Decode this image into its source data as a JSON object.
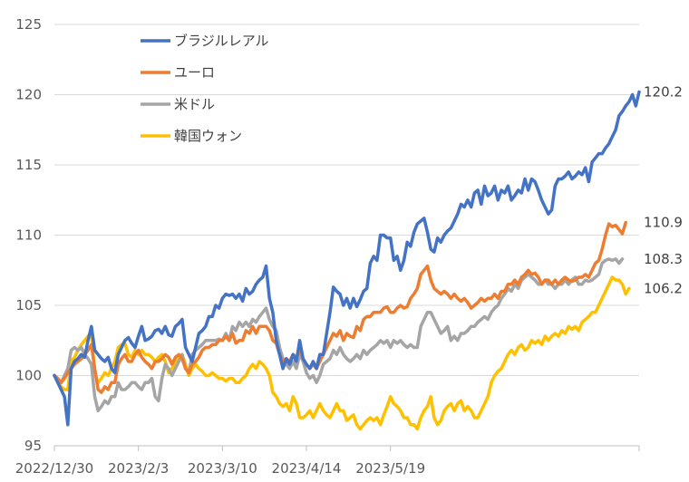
{
  "chart_data": {
    "type": "line",
    "title": "",
    "xlabel": "",
    "ylabel": "",
    "ylim": [
      95,
      125
    ],
    "yticks": [
      95,
      100,
      105,
      110,
      115,
      120,
      125
    ],
    "grid": "horizontal",
    "legend_position": "top-left",
    "xtick_labels": [
      "2022/12/30",
      "2023/2/3",
      "2023/3/10",
      "2023/4/14",
      "2023/5/19"
    ],
    "series": [
      {
        "name": "ブラジルレアル",
        "color": "#4472C4",
        "end_label": "120.2",
        "values": [
          100.0,
          99.5,
          99.0,
          98.5,
          96.5,
          100.5,
          101.0,
          101.2,
          101.5,
          101.3,
          102.5,
          103.5,
          101.8,
          101.5,
          101.2,
          101.0,
          101.3,
          100.5,
          100.2,
          101.5,
          102.0,
          102.5,
          102.7,
          102.3,
          102.0,
          102.8,
          103.5,
          102.5,
          102.6,
          102.8,
          103.2,
          103.3,
          103.0,
          103.5,
          102.9,
          102.8,
          103.5,
          103.7,
          104.0,
          102.0,
          101.5,
          101.0,
          102.0,
          103.0,
          103.2,
          103.5,
          104.2,
          104.2,
          105.0,
          104.8,
          105.5,
          105.8,
          105.7,
          105.8,
          105.5,
          105.8,
          105.3,
          106.2,
          105.8,
          106.0,
          106.5,
          106.8,
          107.0,
          107.8,
          105.5,
          104.5,
          102.5,
          101.5,
          100.5,
          101.2,
          100.8,
          101.5,
          101.0,
          102.5,
          101.2,
          100.8,
          100.5,
          101.0,
          100.5,
          101.5,
          101.5,
          103.0,
          104.5,
          106.3,
          106.0,
          105.8,
          105.0,
          105.5,
          104.8,
          105.5,
          104.9,
          105.4,
          106.0,
          106.2,
          108.0,
          108.5,
          108.2,
          110.0,
          110.0,
          109.8,
          109.8,
          108.2,
          108.5,
          107.5,
          108.2,
          109.5,
          109.2,
          110.2,
          110.8,
          111.0,
          111.2,
          110.2,
          109.0,
          108.8,
          109.8,
          109.5,
          110.0,
          110.3,
          110.5,
          111.0,
          111.5,
          112.2,
          112.0,
          112.5,
          112.0,
          113.0,
          113.2,
          112.2,
          113.5,
          112.8,
          113.0,
          113.5,
          112.5,
          113.2,
          113.0,
          113.5,
          112.5,
          112.8,
          113.2,
          113.0,
          114.0,
          113.2,
          114.0,
          113.8,
          113.2,
          112.5,
          112.0,
          111.5,
          111.8,
          113.5,
          114.0,
          114.0,
          114.2,
          114.5,
          114.0,
          114.2,
          114.5,
          114.3,
          114.8,
          113.8,
          115.2,
          115.5,
          115.8,
          115.8,
          116.2,
          116.5,
          117.0,
          117.5,
          118.5,
          118.8,
          119.2,
          119.5,
          120.0,
          119.2,
          120.2
        ]
      },
      {
        "name": "ユーロ",
        "color": "#ED7D31",
        "end_label": "110.9",
        "values": [
          100.0,
          99.8,
          99.5,
          99.8,
          100.2,
          100.5,
          100.8,
          101.0,
          101.2,
          101.5,
          101.8,
          102.2,
          100.5,
          99.0,
          98.8,
          99.2,
          99.0,
          99.5,
          99.5,
          100.8,
          101.2,
          101.5,
          101.0,
          101.0,
          101.5,
          101.8,
          101.3,
          101.0,
          100.8,
          100.5,
          101.0,
          101.0,
          101.2,
          101.5,
          101.3,
          100.8,
          101.3,
          101.5,
          101.2,
          100.5,
          100.2,
          100.8,
          101.0,
          101.3,
          101.8,
          102.0,
          102.0,
          102.2,
          102.2,
          102.5,
          102.5,
          102.8,
          102.5,
          103.0,
          102.3,
          102.5,
          102.5,
          103.2,
          103.0,
          103.5,
          103.0,
          103.5,
          103.5,
          103.5,
          103.2,
          102.5,
          102.3,
          101.5,
          101.0,
          101.2,
          101.0,
          101.5,
          101.3,
          101.8,
          101.2,
          100.8,
          100.5,
          100.8,
          100.5,
          101.0,
          101.5,
          102.0,
          102.5,
          103.0,
          102.8,
          103.2,
          102.5,
          103.0,
          102.8,
          102.7,
          103.5,
          103.2,
          104.0,
          104.2,
          104.2,
          104.5,
          104.5,
          104.5,
          104.8,
          104.9,
          104.5,
          104.5,
          104.8,
          105.0,
          104.8,
          104.9,
          105.5,
          105.8,
          106.2,
          107.2,
          107.5,
          107.8,
          106.8,
          106.2,
          106.0,
          105.8,
          106.0,
          105.8,
          105.5,
          105.8,
          105.5,
          105.3,
          105.5,
          105.2,
          104.8,
          105.0,
          105.2,
          105.5,
          105.3,
          105.5,
          105.5,
          105.8,
          105.5,
          106.0,
          106.0,
          106.5,
          106.5,
          106.8,
          106.5,
          107.0,
          107.2,
          107.5,
          107.2,
          107.3,
          107.0,
          106.5,
          106.8,
          106.8,
          106.5,
          106.8,
          106.5,
          106.8,
          107.0,
          106.8,
          106.7,
          106.8,
          107.0,
          107.0,
          107.2,
          107.0,
          107.5,
          108.0,
          108.2,
          109.0,
          110.0,
          110.8,
          110.6,
          110.7,
          110.4,
          110.1,
          110.9
        ]
      },
      {
        "name": "米ドル",
        "color": "#A5A5A5",
        "end_label": "108.3",
        "values": [
          100.0,
          99.7,
          99.5,
          100.0,
          100.5,
          101.8,
          102.0,
          101.8,
          102.0,
          101.5,
          101.2,
          100.8,
          98.5,
          97.5,
          97.8,
          98.2,
          98.0,
          98.5,
          98.5,
          99.5,
          99.0,
          99.0,
          99.2,
          99.5,
          99.5,
          99.2,
          99.0,
          99.5,
          99.5,
          99.8,
          98.5,
          98.2,
          99.8,
          100.8,
          100.5,
          100.0,
          100.5,
          101.0,
          101.5,
          100.5,
          100.2,
          101.5,
          101.8,
          102.0,
          102.2,
          102.5,
          102.5,
          102.5,
          102.5,
          102.6,
          102.5,
          103.0,
          102.5,
          103.5,
          103.2,
          103.8,
          103.5,
          103.8,
          103.5,
          104.0,
          103.8,
          104.2,
          104.5,
          104.8,
          104.0,
          103.5,
          103.2,
          102.0,
          101.2,
          100.8,
          100.5,
          101.0,
          100.5,
          101.5,
          101.0,
          100.2,
          99.8,
          100.0,
          99.5,
          100.0,
          100.8,
          101.0,
          101.2,
          101.8,
          101.5,
          102.0,
          101.5,
          101.2,
          101.0,
          101.2,
          101.5,
          101.2,
          101.8,
          101.5,
          101.8,
          102.0,
          102.2,
          102.5,
          102.3,
          102.5,
          102.0,
          102.5,
          102.3,
          102.5,
          102.2,
          102.0,
          102.2,
          102.0,
          102.0,
          103.5,
          104.0,
          104.5,
          104.5,
          104.0,
          103.5,
          103.0,
          103.2,
          103.5,
          102.5,
          102.8,
          102.5,
          103.0,
          103.0,
          103.2,
          103.5,
          103.5,
          103.8,
          104.0,
          104.2,
          104.0,
          104.5,
          104.8,
          105.0,
          105.5,
          105.8,
          106.2,
          106.0,
          106.5,
          106.2,
          106.8,
          107.0,
          107.2,
          107.0,
          106.8,
          106.5,
          106.5,
          106.8,
          106.5,
          106.5,
          106.2,
          106.5,
          106.5,
          106.8,
          106.5,
          106.8,
          107.0,
          106.5,
          106.5,
          106.8,
          106.7,
          106.8,
          107.0,
          107.2,
          108.0,
          108.2,
          108.3,
          108.2,
          108.3,
          108.0,
          108.3
        ]
      },
      {
        "name": "韓国ウォン",
        "color": "#FFC000",
        "end_label": "106.2",
        "values": [
          100.0,
          99.6,
          99.2,
          99.0,
          99.0,
          101.0,
          101.3,
          101.8,
          102.2,
          102.5,
          102.8,
          103.0,
          100.2,
          99.5,
          99.8,
          100.2,
          100.0,
          100.5,
          101.0,
          102.0,
          102.2,
          102.3,
          101.5,
          101.3,
          101.8,
          101.5,
          101.8,
          101.5,
          101.5,
          101.3,
          101.0,
          101.3,
          101.5,
          101.0,
          100.2,
          100.5,
          101.0,
          101.2,
          101.5,
          100.8,
          100.0,
          100.5,
          100.8,
          100.5,
          100.3,
          100.0,
          100.0,
          100.2,
          100.0,
          99.8,
          99.8,
          99.6,
          99.8,
          99.8,
          99.5,
          99.5,
          99.8,
          100.0,
          100.5,
          100.8,
          100.5,
          101.0,
          100.8,
          100.5,
          100.0,
          98.8,
          98.5,
          98.0,
          97.8,
          98.0,
          97.5,
          98.5,
          98.0,
          97.0,
          97.0,
          97.2,
          97.5,
          97.0,
          97.5,
          98.0,
          97.5,
          97.2,
          97.0,
          97.5,
          98.0,
          97.5,
          97.5,
          96.8,
          97.0,
          97.2,
          96.5,
          96.2,
          96.5,
          96.8,
          97.0,
          96.8,
          97.0,
          96.5,
          97.2,
          97.8,
          98.5,
          98.0,
          97.8,
          97.5,
          97.0,
          97.0,
          96.5,
          96.5,
          96.2,
          97.0,
          97.5,
          97.8,
          98.5,
          97.0,
          96.5,
          96.8,
          97.5,
          97.8,
          98.0,
          97.5,
          98.0,
          98.2,
          97.5,
          97.8,
          97.5,
          97.0,
          97.0,
          97.5,
          98.0,
          98.5,
          99.5,
          100.0,
          100.3,
          100.5,
          101.0,
          101.5,
          101.8,
          101.5,
          102.0,
          102.2,
          101.8,
          102.0,
          102.5,
          102.3,
          102.5,
          102.2,
          102.8,
          102.5,
          102.8,
          103.0,
          102.8,
          103.2,
          103.0,
          103.5,
          103.3,
          103.5,
          103.2,
          103.8,
          104.0,
          104.2,
          104.5,
          104.5,
          105.0,
          105.5,
          106.0,
          106.5,
          107.0,
          106.8,
          106.8,
          106.5,
          105.8,
          106.2
        ]
      }
    ]
  }
}
